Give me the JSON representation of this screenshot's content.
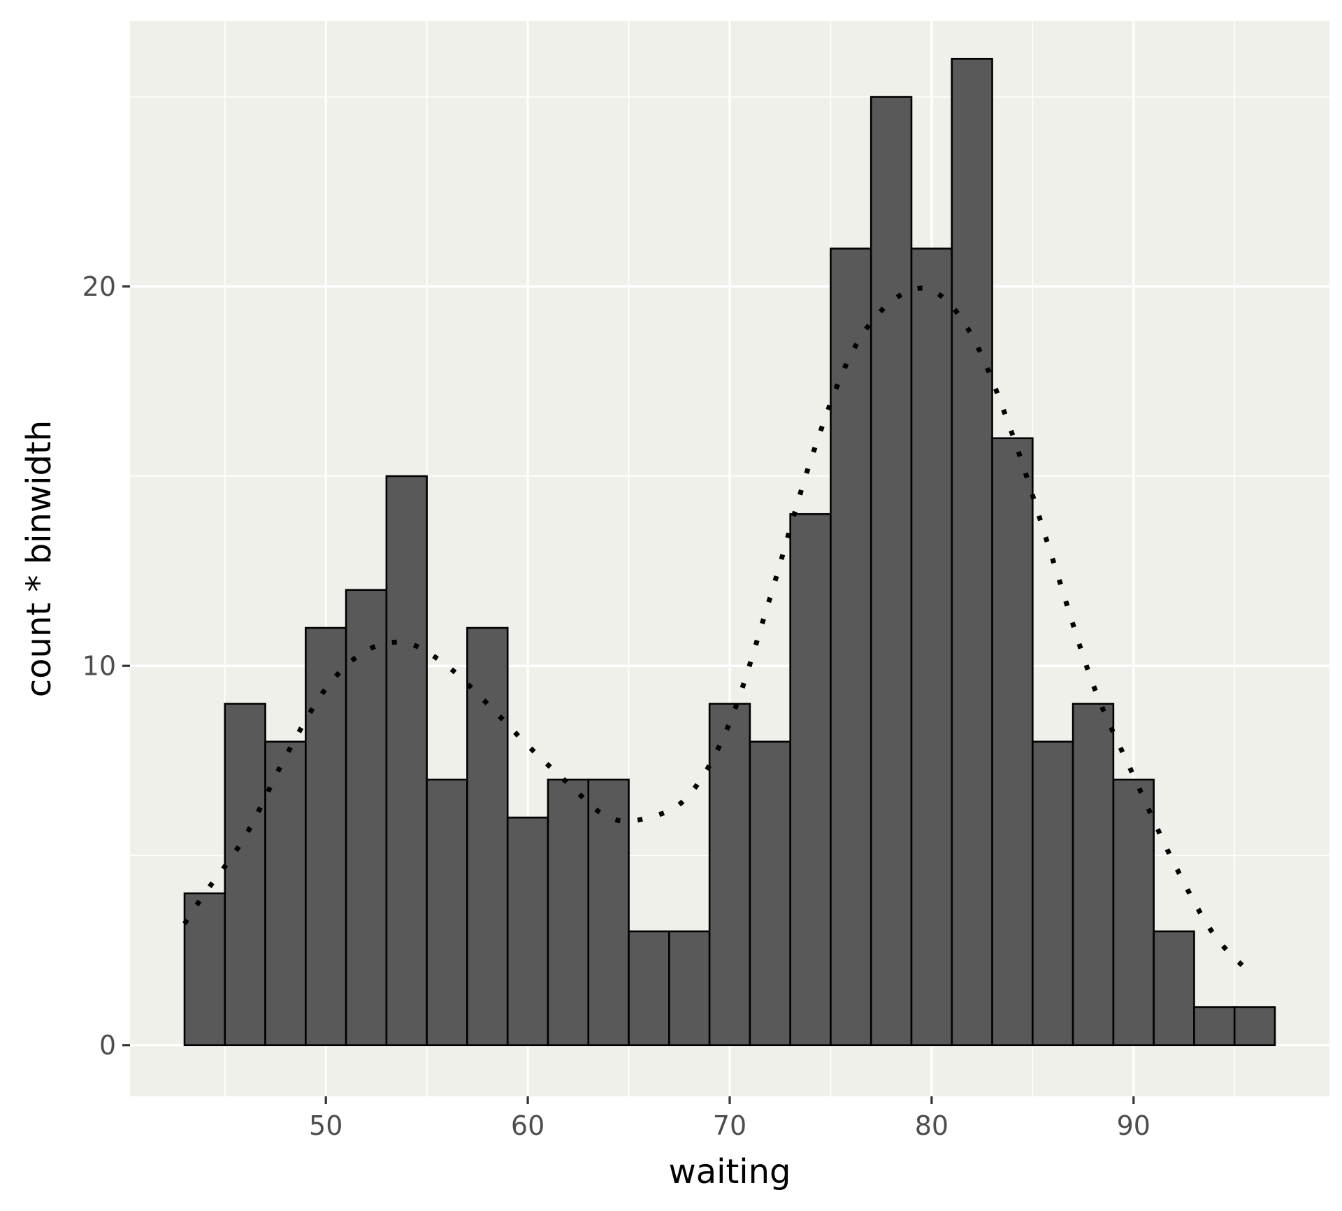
{
  "chart_data": {
    "type": "bar",
    "title": "",
    "xlabel": "waiting",
    "ylabel": "count * binwidth",
    "xlim": [
      40.3,
      99.7
    ],
    "ylim": [
      -1.35,
      27.0
    ],
    "x_ticks": [
      50,
      60,
      70,
      80,
      90
    ],
    "y_ticks": [
      0,
      10,
      20
    ],
    "grid": true,
    "legend": "none",
    "bin_width": 2,
    "bars": [
      {
        "x_min": 43,
        "x_max": 45,
        "value": 4
      },
      {
        "x_min": 45,
        "x_max": 47,
        "value": 9
      },
      {
        "x_min": 47,
        "x_max": 49,
        "value": 8
      },
      {
        "x_min": 49,
        "x_max": 51,
        "value": 11
      },
      {
        "x_min": 51,
        "x_max": 53,
        "value": 12
      },
      {
        "x_min": 53,
        "x_max": 55,
        "value": 15
      },
      {
        "x_min": 55,
        "x_max": 57,
        "value": 7
      },
      {
        "x_min": 57,
        "x_max": 59,
        "value": 11
      },
      {
        "x_min": 59,
        "x_max": 61,
        "value": 6
      },
      {
        "x_min": 61,
        "x_max": 63,
        "value": 7
      },
      {
        "x_min": 63,
        "x_max": 65,
        "value": 7
      },
      {
        "x_min": 65,
        "x_max": 67,
        "value": 3
      },
      {
        "x_min": 67,
        "x_max": 69,
        "value": 3
      },
      {
        "x_min": 69,
        "x_max": 71,
        "value": 9
      },
      {
        "x_min": 71,
        "x_max": 73,
        "value": 8
      },
      {
        "x_min": 73,
        "x_max": 75,
        "value": 14
      },
      {
        "x_min": 75,
        "x_max": 77,
        "value": 21
      },
      {
        "x_min": 77,
        "x_max": 79,
        "value": 25
      },
      {
        "x_min": 79,
        "x_max": 81,
        "value": 21
      },
      {
        "x_min": 81,
        "x_max": 83,
        "value": 26
      },
      {
        "x_min": 83,
        "x_max": 85,
        "value": 16
      },
      {
        "x_min": 85,
        "x_max": 87,
        "value": 8
      },
      {
        "x_min": 87,
        "x_max": 89,
        "value": 9
      },
      {
        "x_min": 89,
        "x_max": 91,
        "value": 7
      },
      {
        "x_min": 91,
        "x_max": 93,
        "value": 3
      },
      {
        "x_min": 93,
        "x_max": 95,
        "value": 1
      },
      {
        "x_min": 95,
        "x_max": 97,
        "value": 1
      }
    ],
    "density_curve": {
      "style": "dotted",
      "x": [
        43,
        44,
        46,
        48,
        50,
        52,
        54,
        56,
        58,
        60,
        62,
        64,
        66,
        68,
        70,
        72,
        74,
        76,
        78,
        80,
        82,
        84,
        86,
        88,
        90,
        92,
        94,
        96
      ],
      "y": [
        3.2,
        4.0,
        5.5,
        7.6,
        9.4,
        10.4,
        10.6,
        10.0,
        9.0,
        7.9,
        6.9,
        6.0,
        6.0,
        6.6,
        8.5,
        11.8,
        15.4,
        18.2,
        19.6,
        19.9,
        18.7,
        16.1,
        12.8,
        9.5,
        7.1,
        4.8,
        2.9,
        1.8
      ]
    },
    "colors": {
      "panel_background": "#f0f0ea",
      "grid": "#ffffff",
      "bar_fill": "#595959",
      "bar_stroke": "#000000",
      "curve": "#000000"
    }
  }
}
